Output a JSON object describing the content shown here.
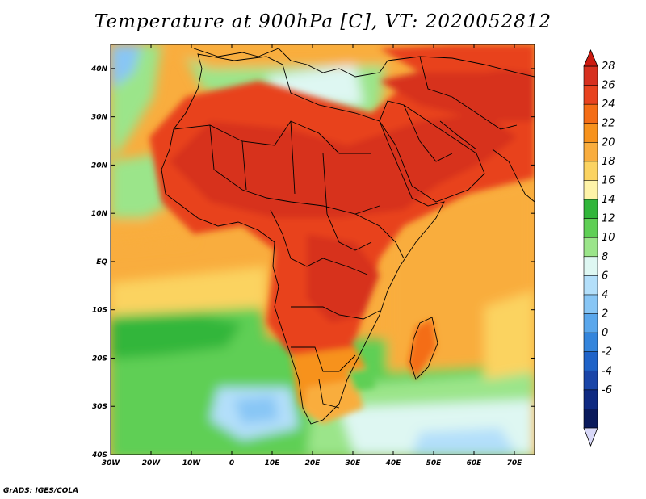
{
  "title": "Temperature at 900hPa [C], VT: 2020052812",
  "credit": "GrADS: IGES/COLA",
  "map": {
    "region": "Africa and Middle East",
    "variable": "Temperature",
    "level": "900hPa",
    "units": "C",
    "valid_time": "2020052812",
    "lon_range": [
      -30,
      75
    ],
    "lat_range": [
      -40,
      45
    ],
    "lon_ticks": [
      "30W",
      "20W",
      "10W",
      "0",
      "10E",
      "20E",
      "30E",
      "40E",
      "50E",
      "60E",
      "70E"
    ],
    "lat_ticks": [
      "40N",
      "30N",
      "20N",
      "10N",
      "EQ",
      "10S",
      "20S",
      "30S",
      "40S"
    ]
  },
  "colorbar": {
    "labels": [
      "28",
      "26",
      "24",
      "22",
      "20",
      "18",
      "16",
      "14",
      "12",
      "10",
      "8",
      "6",
      "4",
      "2",
      "0",
      "-2",
      "-4",
      "-6"
    ],
    "colors": [
      "#d7301f",
      "#e8431f",
      "#f46d16",
      "#f7921c",
      "#f9ad3e",
      "#fbd361",
      "#fef3a8",
      "#31b63a",
      "#5fcf55",
      "#9be58a",
      "#def7f2",
      "#b3dffa",
      "#88c6f5",
      "#5aa7ec",
      "#3485dc",
      "#1f63c8",
      "#1a45a8",
      "#0f2a82",
      "#0a1a5c"
    ],
    "over_color": "#cc1a10",
    "under_color": "#d8d8f8"
  }
}
